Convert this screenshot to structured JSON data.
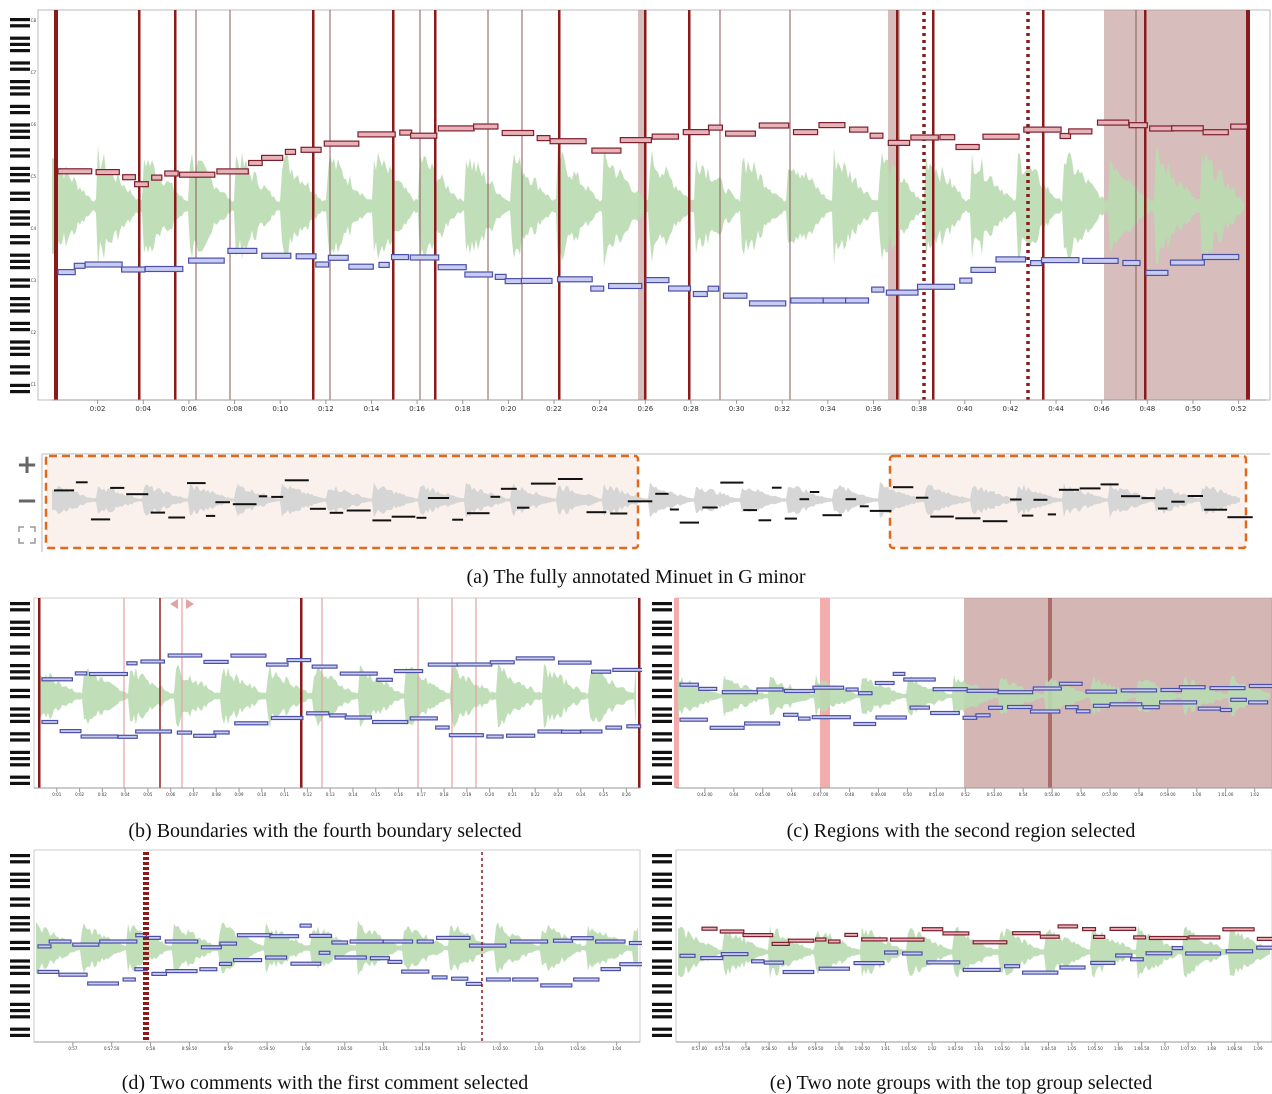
{
  "colors": {
    "waveform": "#b9dbb1",
    "boundary": "#8b1a1a",
    "boundary_light": "#e3a3a3",
    "region": "#b78783",
    "region_selected": "#f3a4a4",
    "note_blue_fill": "#c8ccf0",
    "note_blue_stroke": "#4b4fa8",
    "note_red_fill": "#e7b3b9",
    "note_red_stroke": "#7d1f2d",
    "navigator_box": "#e0691b",
    "navigator_bg": "#fbf1ec"
  },
  "panel_a": {
    "time_ticks": [
      "0:02",
      "0:04",
      "0:06",
      "0:08",
      "0:10",
      "0:12",
      "0:14",
      "0:16",
      "0:18",
      "0:20",
      "0:22",
      "0:24",
      "0:26",
      "0:28",
      "0:30",
      "0:32",
      "0:34",
      "0:36",
      "0:38",
      "0:40",
      "0:42",
      "0:44",
      "0:46",
      "0:48",
      "0:50",
      "0:52"
    ],
    "octave_labels": [
      "C8",
      "C7",
      "C6",
      "C5",
      "C4",
      "C3",
      "C2",
      "C1"
    ],
    "caption": "(a) The fully annotated Minuet in G minor"
  },
  "navigator": {
    "zoom_in": "+",
    "zoom_out": "−",
    "fit_icon": "fit-to-view-icon"
  },
  "panel_b": {
    "time_ticks": [
      "0:01",
      "0:02",
      "0:02",
      "0:04",
      "0:05",
      "0:06",
      "0:07",
      "0:08",
      "0:09",
      "0:10",
      "0:11",
      "0:12",
      "0:13",
      "0:14",
      "0:15",
      "0:16",
      "0:17",
      "0:18",
      "0:19",
      "0:20",
      "0:21",
      "0:22",
      "0:23",
      "0:24",
      "0:25",
      "0:26"
    ],
    "caption": "(b) Boundaries with the fourth boundary selected"
  },
  "panel_c": {
    "time_ticks": [
      "0:42.00",
      "0:44",
      "0:45.00",
      "0:46",
      "0:47.00",
      "0:48",
      "0:49.00",
      "0:50",
      "0:51.00",
      "0:52",
      "0:53.00",
      "0:54",
      "0:55.00",
      "0:56",
      "0:57.00",
      "0:58",
      "0:59.00",
      "1:00",
      "1:01.00",
      "1:02"
    ],
    "caption": "(c) Regions with the second region selected"
  },
  "panel_d": {
    "time_ticks": [
      "0:57",
      "0:57.50",
      "0:58",
      "0:58.50",
      "0:59",
      "0:59.50",
      "1:00",
      "1:00.50",
      "1:01",
      "1:01.50",
      "1:02",
      "1:02.50",
      "1:03",
      "1:03.50",
      "1:04"
    ],
    "caption": "(d) Two comments with the first comment selected"
  },
  "panel_e": {
    "time_ticks": [
      "0:57.00",
      "0:57.50",
      "0:58",
      "0:58.50",
      "0:59",
      "0:59.50",
      "1:00",
      "1:00.50",
      "1:01",
      "1:01.50",
      "1:02",
      "1:02.50",
      "1:03",
      "1:03.50",
      "1:04",
      "1:04.50",
      "1:05",
      "1:05.50",
      "1:06",
      "1:06.50",
      "1:07",
      "1:07.50",
      "1:08",
      "1:08.50",
      "1:09"
    ],
    "caption": "(e) Two note groups with the top group selected"
  }
}
